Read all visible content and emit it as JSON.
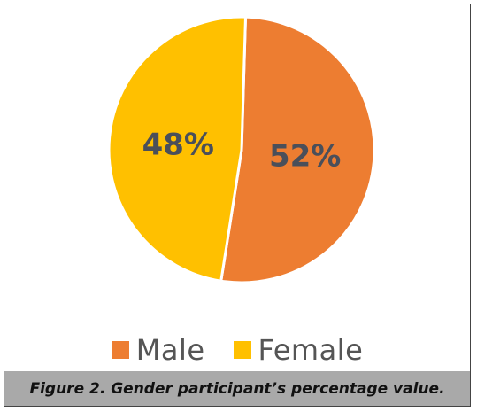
{
  "chart_data": {
    "type": "pie",
    "categories": [
      "Male",
      "Female"
    ],
    "values": [
      52,
      48
    ],
    "value_labels": [
      "52%",
      "48%"
    ],
    "colors": [
      "#ED7D31",
      "#FFC000"
    ],
    "legend_position": "bottom"
  },
  "legend": {
    "items": [
      {
        "label": "Male",
        "color": "#ED7D31"
      },
      {
        "label": "Female",
        "color": "#FFC000"
      }
    ]
  },
  "caption": {
    "text": "Figure 2. Gender participant’s percentage value."
  }
}
